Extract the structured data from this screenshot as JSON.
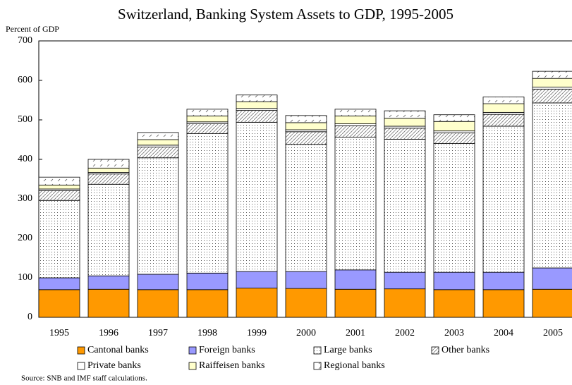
{
  "chart_data": {
    "type": "stacked_bar",
    "title": "Switzerland, Banking System Assets to GDP, 1995-2005",
    "y_label": "Percent of GDP",
    "source": "Source: SNB and IMF staff calculations.",
    "categories": [
      "1995",
      "1996",
      "1997",
      "1998",
      "1999",
      "2000",
      "2001",
      "2002",
      "2003",
      "2004",
      "2005"
    ],
    "ylim": [
      0,
      700
    ],
    "yticks": [
      0,
      100,
      200,
      300,
      400,
      500,
      600,
      700
    ],
    "series": [
      {
        "name": "Cantonal banks",
        "color": "#ff9900",
        "pattern": "solid",
        "values": [
          70,
          71,
          70,
          70,
          74,
          73,
          71,
          72,
          70,
          70,
          71
        ]
      },
      {
        "name": "Foreign banks",
        "color": "#9999ff",
        "pattern": "solid",
        "values": [
          30,
          34,
          39,
          42,
          42,
          43,
          49,
          42,
          44,
          44,
          54
        ]
      },
      {
        "name": "Large banks",
        "color": "#ffffff",
        "pattern": "dots",
        "values": [
          196,
          232,
          295,
          353,
          378,
          322,
          336,
          337,
          326,
          370,
          418
        ]
      },
      {
        "name": "Other banks",
        "color": "#ffffff",
        "pattern": "hatch",
        "values": [
          25,
          26,
          27,
          25,
          30,
          32,
          29,
          28,
          27,
          30,
          35
        ]
      },
      {
        "name": "Private banks",
        "color": "#ffffff",
        "pattern": "solid",
        "values": [
          4,
          4,
          5,
          5,
          5,
          5,
          5,
          5,
          5,
          5,
          5
        ]
      },
      {
        "name": "Raiffeisen banks",
        "color": "#ffffcc",
        "pattern": "solid",
        "values": [
          10,
          11,
          14,
          15,
          17,
          18,
          20,
          20,
          24,
          22,
          22
        ]
      },
      {
        "name": "Regional banks",
        "color": "#ffffff",
        "pattern": "dash",
        "values": [
          20,
          22,
          18,
          17,
          17,
          18,
          17,
          19,
          17,
          17,
          18
        ]
      }
    ]
  }
}
